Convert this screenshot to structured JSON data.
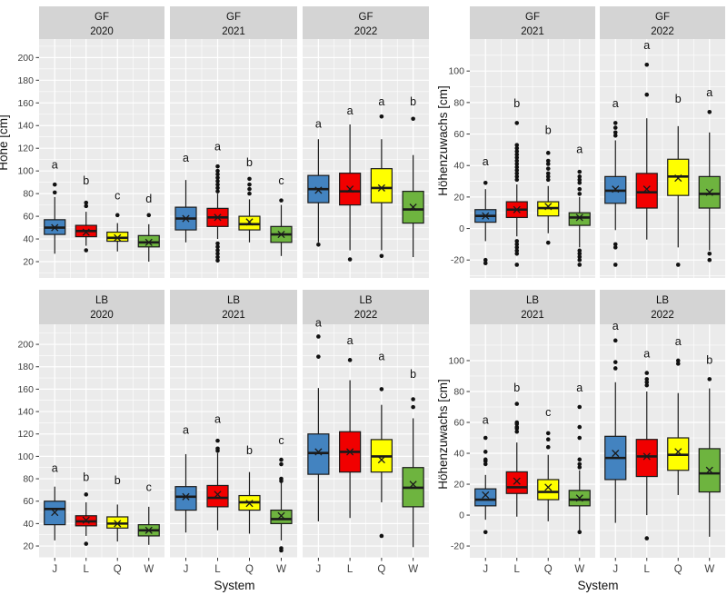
{
  "theme": {
    "panel_bg": "#ebebeb",
    "strip_bg": "#d4d4d4",
    "grid_color": "#ffffff",
    "box_stroke": "#1a1a1a",
    "outlier_color": "#111111",
    "background": "#ffffff"
  },
  "categories": [
    "J",
    "L",
    "Q",
    "W"
  ],
  "system_colors": {
    "J": "#4383c0",
    "L": "#f10000",
    "Q": "#ffff00",
    "W": "#6eb43f"
  },
  "mean_marker": "x-cross",
  "chart_data": [
    {
      "type": "boxplot",
      "title": "",
      "ylabel": "Höhe [cm]",
      "xlabel": "System",
      "legend": "none",
      "grid": "on",
      "categories": [
        "J",
        "L",
        "Q",
        "W"
      ],
      "facet_row_labels": [
        "GF",
        "LB"
      ],
      "facet_col_labels": [
        "2020",
        "2021",
        "2022"
      ],
      "yticks": [
        20,
        40,
        60,
        80,
        100,
        120,
        140,
        160,
        180,
        200
      ],
      "row_ydomains": [
        [
          5.6,
          216.3
        ],
        [
          9.5,
          217.9
        ]
      ],
      "panels": [
        {
          "row": "GF",
          "col": "2020",
          "boxes": [
            {
              "system": "J",
              "letter": "a",
              "letter_y": 102,
              "low": 27,
              "q1": 44,
              "median": 50,
              "q3": 57,
              "high": 77,
              "mean": 50,
              "outliers": [
                81,
                88
              ]
            },
            {
              "system": "L",
              "letter": "b",
              "letter_y": 88,
              "low": 34,
              "q1": 42,
              "median": 47,
              "q3": 52,
              "high": 64,
              "mean": 46,
              "outliers": [
                72,
                69,
                30
              ]
            },
            {
              "system": "Q",
              "letter": "c",
              "letter_y": 75,
              "low": 29,
              "q1": 38,
              "median": 41,
              "q3": 46,
              "high": 54,
              "mean": 41,
              "outliers": [
                61
              ]
            },
            {
              "system": "W",
              "letter": "d",
              "letter_y": 72,
              "low": 20,
              "q1": 33,
              "median": 37,
              "q3": 43,
              "high": 53,
              "mean": 37,
              "outliers": [
                61
              ]
            }
          ]
        },
        {
          "row": "GF",
          "col": "2021",
          "boxes": [
            {
              "system": "J",
              "letter": "a",
              "letter_y": 108,
              "low": 37,
              "q1": 48,
              "median": 58,
              "q3": 68,
              "high": 92,
              "mean": 58,
              "outliers": []
            },
            {
              "system": "L",
              "letter": "a",
              "letter_y": 118,
              "low": 40,
              "q1": 51,
              "median": 59,
              "q3": 67,
              "high": 80,
              "mean": 59,
              "outliers": [
                104,
                100,
                97,
                94,
                91,
                88,
                85,
                82,
                36,
                33,
                30,
                27,
                24,
                21
              ]
            },
            {
              "system": "Q",
              "letter": "b",
              "letter_y": 104,
              "low": 37,
              "q1": 48,
              "median": 53,
              "q3": 60,
              "high": 75,
              "mean": 55,
              "outliers": [
                93,
                88,
                84,
                80
              ]
            },
            {
              "system": "W",
              "letter": "c",
              "letter_y": 88,
              "low": 25,
              "q1": 37,
              "median": 44,
              "q3": 51,
              "high": 70,
              "mean": 44,
              "outliers": [
                74
              ]
            }
          ]
        },
        {
          "row": "GF",
          "col": "2022",
          "boxes": [
            {
              "system": "J",
              "letter": "a",
              "letter_y": 138,
              "low": 37,
              "q1": 72,
              "median": 84,
              "q3": 96,
              "high": 128,
              "mean": 83,
              "outliers": [
                35
              ]
            },
            {
              "system": "L",
              "letter": "a",
              "letter_y": 150,
              "low": 30,
              "q1": 70,
              "median": 82,
              "q3": 98,
              "high": 141,
              "mean": 84,
              "outliers": [
                22
              ]
            },
            {
              "system": "Q",
              "letter": "a",
              "letter_y": 158,
              "low": 30,
              "q1": 72,
              "median": 85,
              "q3": 102,
              "high": 128,
              "mean": 85,
              "outliers": [
                148,
                25
              ]
            },
            {
              "system": "W",
              "letter": "b",
              "letter_y": 158,
              "low": 24,
              "q1": 54,
              "median": 66,
              "q3": 82,
              "high": 114,
              "mean": 68,
              "outliers": [
                146
              ]
            }
          ]
        },
        {
          "row": "LB",
          "col": "2020",
          "boxes": [
            {
              "system": "J",
              "letter": "a",
              "letter_y": 86,
              "low": 25,
              "q1": 39,
              "median": 53,
              "q3": 60,
              "high": 73,
              "mean": 50,
              "outliers": []
            },
            {
              "system": "L",
              "letter": "b",
              "letter_y": 78,
              "low": 29,
              "q1": 38,
              "median": 42,
              "q3": 47,
              "high": 59,
              "mean": 43,
              "outliers": [
                66,
                22
              ]
            },
            {
              "system": "Q",
              "letter": "b",
              "letter_y": 75,
              "low": 24,
              "q1": 36,
              "median": 40,
              "q3": 46,
              "high": 57,
              "mean": 40,
              "outliers": []
            },
            {
              "system": "W",
              "letter": "c",
              "letter_y": 69,
              "low": 21,
              "q1": 29,
              "median": 34,
              "q3": 39,
              "high": 55,
              "mean": 34,
              "outliers": []
            }
          ]
        },
        {
          "row": "LB",
          "col": "2021",
          "boxes": [
            {
              "system": "J",
              "letter": "a",
              "letter_y": 120,
              "low": 32,
              "q1": 52,
              "median": 64,
              "q3": 73,
              "high": 102,
              "mean": 64,
              "outliers": []
            },
            {
              "system": "L",
              "letter": "a",
              "letter_y": 130,
              "low": 34,
              "q1": 55,
              "median": 63,
              "q3": 74,
              "high": 103,
              "mean": 66,
              "outliers": [
                114,
                107,
                105
              ]
            },
            {
              "system": "Q",
              "letter": "b",
              "letter_y": 102,
              "low": 31,
              "q1": 52,
              "median": 59,
              "q3": 65,
              "high": 86,
              "mean": 58,
              "outliers": []
            },
            {
              "system": "W",
              "letter": "c",
              "letter_y": 111,
              "low": 25,
              "q1": 40,
              "median": 44,
              "q3": 52,
              "high": 78,
              "mean": 47,
              "outliers": [
                97,
                93,
                80,
                78,
                18,
                16
              ]
            }
          ]
        },
        {
          "row": "LB",
          "col": "2022",
          "boxes": [
            {
              "system": "J",
              "letter": "a",
              "letter_y": 216,
              "low": 42,
              "q1": 84,
              "median": 103,
              "q3": 120,
              "high": 161,
              "mean": 104,
              "outliers": [
                207,
                189
              ]
            },
            {
              "system": "L",
              "letter": "a",
              "letter_y": 200,
              "low": 45,
              "q1": 86,
              "median": 104,
              "q3": 122,
              "high": 168,
              "mean": 104,
              "outliers": [
                186
              ]
            },
            {
              "system": "Q",
              "letter": "a",
              "letter_y": 186,
              "low": 59,
              "q1": 86,
              "median": 100,
              "q3": 115,
              "high": 146,
              "mean": 97,
              "outliers": [
                160,
                29
              ]
            },
            {
              "system": "W",
              "letter": "b",
              "letter_y": 170,
              "low": 19,
              "q1": 55,
              "median": 72,
              "q3": 90,
              "high": 134,
              "mean": 75,
              "outliers": [
                151,
                144
              ]
            }
          ]
        }
      ]
    },
    {
      "type": "boxplot",
      "title": "",
      "ylabel": "Höhenzuwachs [cm]",
      "xlabel": "System",
      "legend": "none",
      "grid": "on",
      "categories": [
        "J",
        "L",
        "Q",
        "W"
      ],
      "facet_row_labels": [
        "GF",
        "LB"
      ],
      "facet_col_labels": [
        "2021",
        "2022"
      ],
      "yticks": [
        -20,
        0,
        20,
        40,
        60,
        80,
        100
      ],
      "row_ydomains": [
        [
          -31.4,
          120.3
        ],
        [
          -27.6,
          123.5
        ]
      ],
      "panels": [
        {
          "row": "GF",
          "col": "2021",
          "boxes": [
            {
              "system": "J",
              "letter": "a",
              "letter_y": 40,
              "low": -8,
              "q1": 4,
              "median": 8,
              "q3": 12,
              "high": 25,
              "mean": 8,
              "outliers": [
                29,
                -20,
                -22
              ]
            },
            {
              "system": "L",
              "letter": "b",
              "letter_y": 77,
              "low": -5,
              "q1": 7,
              "median": 12,
              "q3": 17,
              "high": 28,
              "mean": 12,
              "outliers": [
                67,
                53,
                51,
                49,
                47,
                45,
                43,
                41,
                39,
                37,
                35,
                33,
                31,
                -8,
                -10,
                -12,
                -14,
                -16,
                -23
              ]
            },
            {
              "system": "Q",
              "letter": "b",
              "letter_y": 60,
              "low": -3,
              "q1": 8,
              "median": 13,
              "q3": 17,
              "high": 27,
              "mean": 14,
              "outliers": [
                48,
                43,
                41,
                38,
                35,
                33,
                31,
                -9
              ]
            },
            {
              "system": "W",
              "letter": "a",
              "letter_y": 48,
              "low": -12,
              "q1": 2,
              "median": 7,
              "q3": 10,
              "high": 20,
              "mean": 7,
              "outliers": [
                36,
                33,
                31,
                29,
                25,
                22,
                -14,
                -16,
                -18,
                -20,
                -23
              ]
            }
          ]
        },
        {
          "row": "GF",
          "col": "2022",
          "boxes": [
            {
              "system": "J",
              "letter": "a",
              "letter_y": 77,
              "low": -1,
              "q1": 16,
              "median": 24,
              "q3": 33,
              "high": 56,
              "mean": 25,
              "outliers": [
                67,
                64,
                61,
                59,
                -10,
                -12,
                -23
              ]
            },
            {
              "system": "L",
              "letter": "a",
              "letter_y": 114,
              "low": -7,
              "q1": 13,
              "median": 23,
              "q3": 35,
              "high": 70,
              "mean": 25,
              "outliers": [
                104,
                85
              ]
            },
            {
              "system": "Q",
              "letter": "b",
              "letter_y": 80,
              "low": -12,
              "q1": 21,
              "median": 33,
              "q3": 44,
              "high": 65,
              "mean": 32,
              "outliers": [
                -23
              ]
            },
            {
              "system": "W",
              "letter": "a",
              "letter_y": 84,
              "low": -14,
              "q1": 13,
              "median": 22,
              "q3": 33,
              "high": 61,
              "mean": 23,
              "outliers": [
                74,
                -16,
                -20
              ]
            }
          ]
        },
        {
          "row": "LB",
          "col": "2021",
          "boxes": [
            {
              "system": "J",
              "letter": "a",
              "letter_y": 59,
              "low": -3,
              "q1": 6,
              "median": 10,
              "q3": 17,
              "high": 26,
              "mean": 13,
              "outliers": [
                50,
                41,
                36,
                35,
                33,
                -11
              ]
            },
            {
              "system": "L",
              "letter": "b",
              "letter_y": 80,
              "low": -1,
              "q1": 14,
              "median": 18,
              "q3": 28,
              "high": 47,
              "mean": 22,
              "outliers": [
                72,
                60,
                59,
                57,
                56,
                54
              ]
            },
            {
              "system": "Q",
              "letter": "c",
              "letter_y": 64,
              "low": -4,
              "q1": 10,
              "median": 15,
              "q3": 23,
              "high": 39,
              "mean": 18,
              "outliers": [
                53,
                49,
                44
              ]
            },
            {
              "system": "W",
              "letter": "a",
              "letter_y": 80,
              "low": -10,
              "q1": 6,
              "median": 10,
              "q3": 16,
              "high": 29,
              "mean": 11,
              "outliers": [
                70,
                57,
                50,
                36,
                33,
                31,
                -11
              ]
            }
          ]
        },
        {
          "row": "LB",
          "col": "2022",
          "boxes": [
            {
              "system": "J",
              "letter": "a",
              "letter_y": 120,
              "low": -5,
              "q1": 23,
              "median": 37,
              "q3": 51,
              "high": 86,
              "mean": 40,
              "outliers": [
                113,
                99,
                95
              ]
            },
            {
              "system": "L",
              "letter": "a",
              "letter_y": 102,
              "low": 0,
              "q1": 25,
              "median": 38,
              "q3": 49,
              "high": 80,
              "mean": 38,
              "outliers": [
                92,
                88,
                86,
                84,
                -15
              ]
            },
            {
              "system": "Q",
              "letter": "a",
              "letter_y": 110,
              "low": 13,
              "q1": 29,
              "median": 39,
              "q3": 50,
              "high": 79,
              "mean": 41,
              "outliers": [
                100,
                98
              ]
            },
            {
              "system": "W",
              "letter": "b",
              "letter_y": 98,
              "low": -14,
              "q1": 15,
              "median": 27,
              "q3": 43,
              "high": 82,
              "mean": 29,
              "outliers": [
                88
              ]
            }
          ]
        }
      ]
    }
  ]
}
